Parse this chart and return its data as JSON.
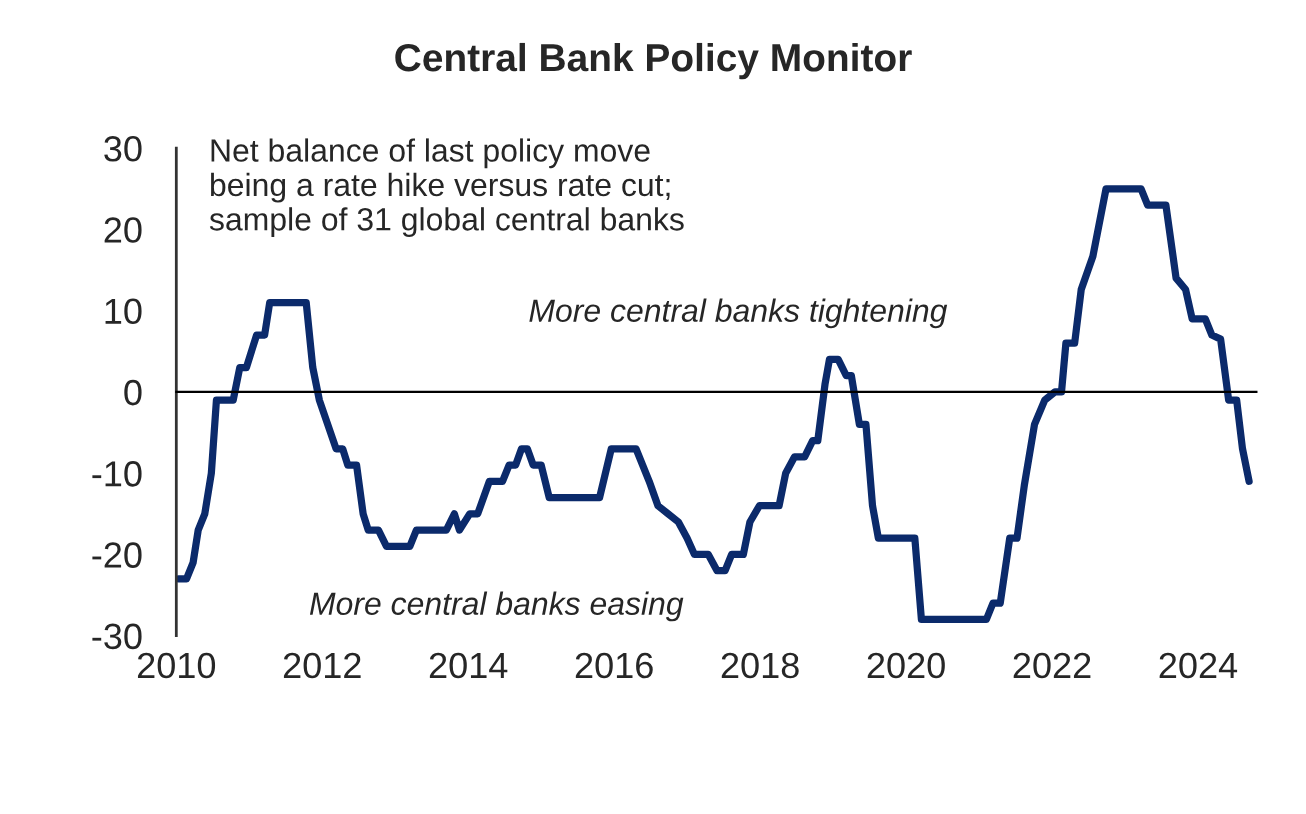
{
  "chart_data": {
    "type": "line",
    "title": "Central Bank Policy Monitor",
    "annotations": [
      "Net balance of last policy move\nbeing a rate hike versus rate cut;\nsample of 31 global central banks",
      "More central banks tightening",
      "More central banks easing"
    ],
    "xlim": [
      2010,
      2024.8
    ],
    "xticks": [
      2010,
      2012,
      2014,
      2016,
      2018,
      2020,
      2022,
      2024
    ],
    "ylim": [
      -30,
      30
    ],
    "yticks": [
      -30,
      -20,
      -10,
      0,
      10,
      20,
      30
    ],
    "legend": false,
    "marker": "none",
    "line_style": "solid",
    "series": [
      {
        "color": "#0b2a6b",
        "x": [
          2010.03,
          2010.14,
          2010.23,
          2010.3,
          2010.39,
          2010.48,
          2010.55,
          2010.78,
          2010.87,
          2010.96,
          2011.1,
          2011.21,
          2011.28,
          2011.78,
          2011.87,
          2011.96,
          2012.19,
          2012.28,
          2012.35,
          2012.47,
          2012.56,
          2012.63,
          2012.77,
          2012.88,
          2013.2,
          2013.29,
          2013.7,
          2013.81,
          2013.88,
          2014.02,
          2014.13,
          2014.29,
          2014.47,
          2014.56,
          2014.65,
          2014.73,
          2014.81,
          2014.89,
          2015.0,
          2015.11,
          2015.8,
          2015.96,
          2016.3,
          2016.39,
          2016.48,
          2016.6,
          2016.74,
          2016.88,
          2017.0,
          2017.1,
          2017.29,
          2017.41,
          2017.52,
          2017.61,
          2017.77,
          2017.86,
          2017.99,
          2018.26,
          2018.35,
          2018.47,
          2018.61,
          2018.72,
          2018.79,
          2018.89,
          2018.95,
          2019.07,
          2019.18,
          2019.25,
          2019.36,
          2019.45,
          2019.54,
          2019.62,
          2020.12,
          2020.21,
          2021.1,
          2021.19,
          2021.29,
          2021.42,
          2021.52,
          2021.62,
          2021.76,
          2021.9,
          2022.04,
          2022.13,
          2022.19,
          2022.31,
          2022.4,
          2022.56,
          2022.74,
          2023.22,
          2023.31,
          2023.56,
          2023.7,
          2023.83,
          2023.92,
          2024.1,
          2024.19,
          2024.31,
          2024.42,
          2024.53,
          2024.61,
          2024.7
        ],
        "values": [
          -23,
          -23,
          -21,
          -17,
          -15,
          -10,
          -1,
          -1,
          3,
          3,
          7,
          7,
          11,
          11,
          3,
          -1,
          -7,
          -7,
          -9,
          -9,
          -15,
          -17,
          -17,
          -19,
          -19,
          -17,
          -17,
          -15,
          -17,
          -15,
          -15,
          -11,
          -11,
          -9,
          -9,
          -7,
          -7,
          -9,
          -9,
          -13,
          -13,
          -7,
          -7,
          -9,
          -11,
          -14,
          -15,
          -16,
          -18,
          -20,
          -20,
          -22,
          -22,
          -20,
          -20,
          -16,
          -14,
          -14,
          -10,
          -8,
          -8,
          -6,
          -6,
          1,
          4,
          4,
          2,
          2,
          -4,
          -4,
          -14,
          -18,
          -18,
          -28,
          -28,
          -26,
          -26,
          -18,
          -18,
          -11.5,
          -4,
          -1,
          0,
          0,
          6,
          6,
          12.6,
          16.7,
          25,
          25,
          23,
          23,
          14,
          12.6,
          9,
          9,
          7,
          6.5,
          -1,
          -1,
          -7,
          -11
        ]
      }
    ]
  }
}
